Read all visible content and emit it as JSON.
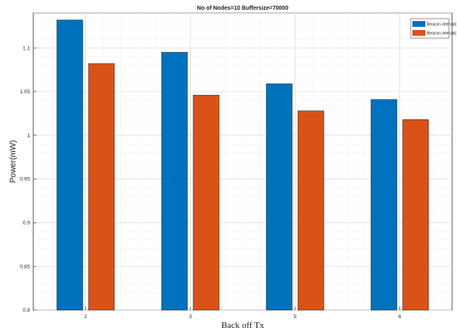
{
  "chart_data": {
    "type": "bar",
    "title": "No of Nodes=10 Buffersize=70000",
    "xlabel": "Back off Tx",
    "ylabel": "Power(mW)",
    "categories": [
      "2",
      "3",
      "5",
      "6"
    ],
    "series": [
      {
        "name": "Beacon interval(",
        "color": "#0072BD",
        "values": [
          1.132,
          1.095,
          1.059,
          1.041
        ]
      },
      {
        "name": "Beacon interval(",
        "color": "#D95319",
        "values": [
          1.082,
          1.046,
          1.028,
          1.018
        ]
      }
    ],
    "ylim": [
      0.8,
      1.14
    ],
    "yticks": [
      "0.8",
      "0.85",
      "0.9",
      "0.95",
      "1",
      "1.05",
      "1.1"
    ],
    "grid": true,
    "legend_position": "top-right"
  }
}
